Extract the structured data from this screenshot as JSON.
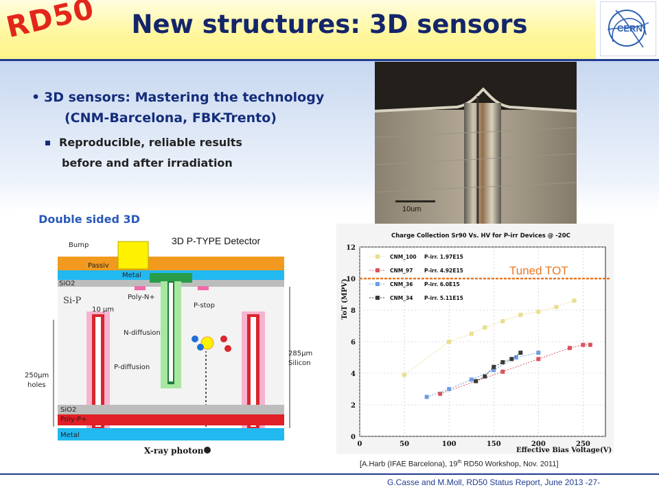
{
  "logo_text": "RD50",
  "title": "New structures: 3D sensors",
  "cern_logo_text": "CERN",
  "bullets": {
    "main_line1": "3D sensors: Mastering the technology",
    "main_line2": "(CNM-Barcelona, FBK-Trento)",
    "sub_line1": "Reproducible, reliable results",
    "sub_line2": "before and after irradiation"
  },
  "photo": {
    "scale_label": "10um"
  },
  "detector": {
    "panel_label": "Double sided 3D",
    "title": "3D P-TYPE Detector",
    "labels": {
      "bump": "Bump",
      "passiv": "Passiv",
      "metal_top": "Metal",
      "sio2_top": "SiO2",
      "sip": "Si-P",
      "polyn": "Poly-N+",
      "pstop": "P-stop",
      "width": "10 µm",
      "ndiff": "N-diffusion",
      "pdiff": "P-diffusion",
      "holes_1": "250µm",
      "holes_2": "holes",
      "silicon_1": "285µm",
      "silicon_2": "Silicon",
      "sio2_bottom": "SiO2",
      "polyp": "Poly-P+",
      "metal_bottom": "Metal",
      "xray": "X-ray photon"
    }
  },
  "chart_data": {
    "type": "scatter",
    "title": "Charge Collection Sr90 Vs. HV for P-irr Devices @ -20C",
    "xlabel": "Effective Bias Voltage(V)",
    "ylabel": "ToT (MPV)",
    "xlim": [
      0,
      275
    ],
    "ylim": [
      0,
      12
    ],
    "xticks": [
      0,
      50,
      100,
      150,
      200,
      250
    ],
    "yticks": [
      0,
      2,
      4,
      6,
      8,
      10,
      12
    ],
    "legend_position": "top-left",
    "annotation": {
      "text": "Tuned TOT",
      "y": 10,
      "color": "#e87722"
    },
    "series": [
      {
        "name": "CNM_100",
        "fluence": "P-irr. 1.97E15",
        "color": "#e8de8c",
        "x": [
          50,
          100,
          125,
          140,
          160,
          180,
          200,
          220,
          240
        ],
        "y": [
          3.9,
          6.0,
          6.5,
          6.9,
          7.3,
          7.7,
          7.9,
          8.2,
          8.6
        ]
      },
      {
        "name": "CNM_97",
        "fluence": "P-irr. 4.92E15",
        "color": "#d9535c",
        "x": [
          90,
          130,
          160,
          200,
          235,
          250,
          258
        ],
        "y": [
          2.7,
          3.5,
          4.1,
          4.9,
          5.6,
          5.8,
          5.8
        ]
      },
      {
        "name": "CNM_36",
        "fluence": "P-irr. 6.0E15",
        "color": "#6f9ee0",
        "x": [
          75,
          100,
          125,
          150,
          175,
          200
        ],
        "y": [
          2.5,
          3.0,
          3.6,
          4.2,
          5.0,
          5.3
        ]
      },
      {
        "name": "CNM_34",
        "fluence": "P-irr. 5.11E15",
        "color": "#3a3a3a",
        "x": [
          130,
          140,
          150,
          160,
          170,
          180
        ],
        "y": [
          3.5,
          3.8,
          4.4,
          4.7,
          4.9,
          5.3
        ]
      }
    ]
  },
  "caption": {
    "prefix": "[A.Harb (IFAE Barcelona), 19",
    "sup": "th",
    "suffix": " RD50 Workshop, Nov. 2011]"
  },
  "footer": "G.Casse and M.Moll, RD50 Status Report, June 2013 -27-"
}
